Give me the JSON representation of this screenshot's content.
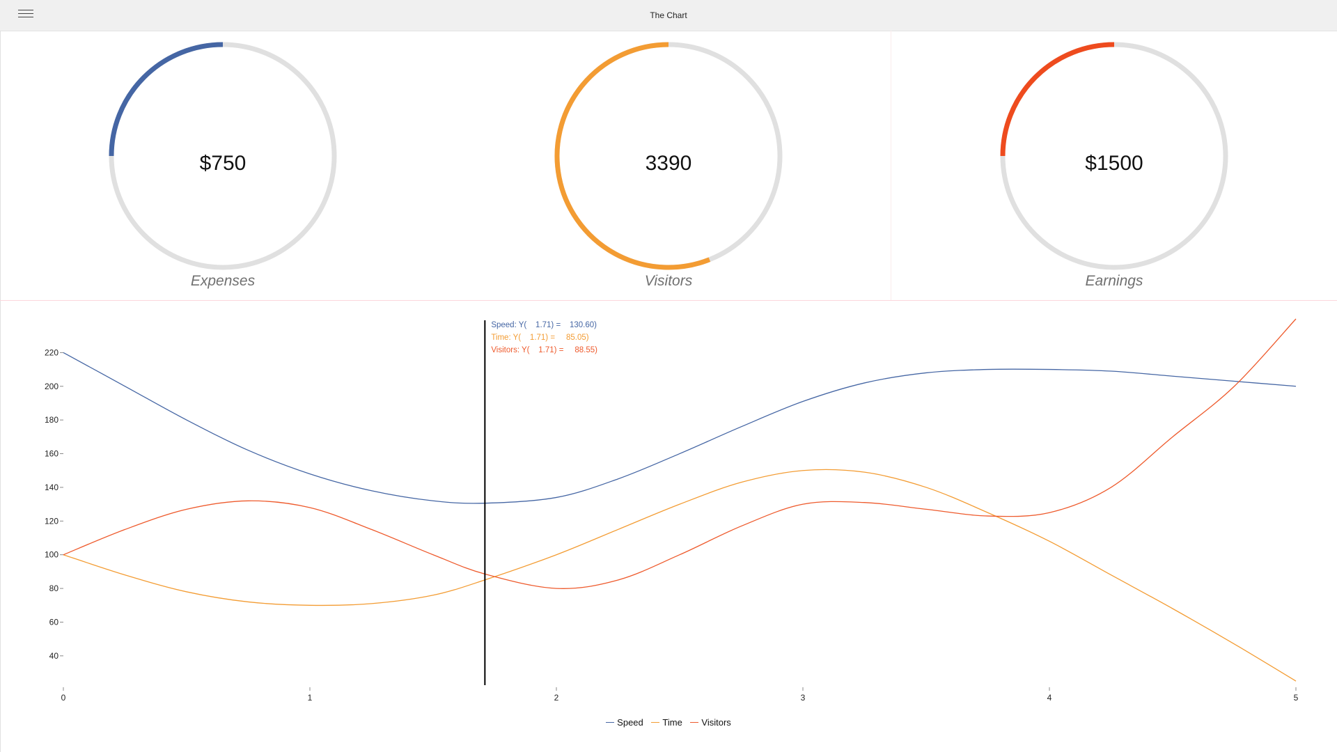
{
  "app": {
    "title": "The Chart",
    "menu_icon": "hamburger-menu-icon"
  },
  "gauges": [
    {
      "value_text": "$750",
      "label": "Expenses",
      "fraction": 0.25,
      "color": "#4566a4"
    },
    {
      "value_text": "3390",
      "label": "Visitors",
      "fraction": 0.56,
      "color": "#f39c33"
    },
    {
      "value_text": "$1500",
      "label": "Earnings",
      "fraction": 0.25,
      "color": "#ee4b1e"
    }
  ],
  "gauge_track_color": "#e0e0e0",
  "chart_data": {
    "type": "line",
    "xlim": [
      0,
      5
    ],
    "ylim": [
      23,
      240
    ],
    "x_ticks": [
      0,
      1,
      2,
      3,
      4,
      5
    ],
    "y_ticks": [
      40,
      60,
      80,
      100,
      120,
      140,
      160,
      180,
      200,
      220
    ],
    "grid": false,
    "legend_position": "bottom",
    "cursor_x": 1.71,
    "series": [
      {
        "name": "Speed",
        "color": "#4566a4",
        "x": [
          0,
          0.25,
          0.5,
          0.75,
          1,
          1.25,
          1.5,
          1.71,
          2,
          2.25,
          2.5,
          2.75,
          3,
          3.25,
          3.5,
          3.75,
          4,
          4.25,
          4.5,
          4.75,
          5
        ],
        "y": [
          220,
          200,
          180,
          162,
          148,
          138,
          132,
          130.6,
          134,
          145,
          160,
          176,
          191,
          202,
          208,
          210,
          210,
          209,
          206,
          203,
          200
        ]
      },
      {
        "name": "Time",
        "color": "#f39c33",
        "x": [
          0,
          0.25,
          0.5,
          0.75,
          1,
          1.25,
          1.5,
          1.71,
          2,
          2.25,
          2.5,
          2.75,
          3,
          3.25,
          3.5,
          3.75,
          4,
          4.25,
          4.5,
          4.75,
          5
        ],
        "y": [
          100,
          88,
          78,
          72,
          70,
          71,
          76,
          85.05,
          100,
          115,
          130,
          143,
          150,
          149,
          140,
          125,
          108,
          88,
          68,
          47,
          25
        ]
      },
      {
        "name": "Visitors",
        "color": "#ee5a2c",
        "x": [
          0,
          0.25,
          0.5,
          0.75,
          1,
          1.25,
          1.5,
          1.71,
          2,
          2.25,
          2.5,
          2.75,
          3,
          3.25,
          3.5,
          3.75,
          4,
          4.25,
          4.5,
          4.75,
          5
        ],
        "y": [
          100,
          115,
          127,
          132,
          128,
          115,
          100,
          88.55,
          80,
          85,
          100,
          117,
          130,
          131,
          127,
          123,
          125,
          140,
          170,
          200,
          240
        ]
      }
    ],
    "tooltip": [
      {
        "series": "Speed",
        "text": "Speed: Y(    1.71) =    130.60)"
      },
      {
        "series": "Time",
        "text": "Time: Y(    1.71) =     85.05)"
      },
      {
        "series": "Visitors",
        "text": "Visitors: Y(    1.71) =     88.55)"
      }
    ]
  }
}
